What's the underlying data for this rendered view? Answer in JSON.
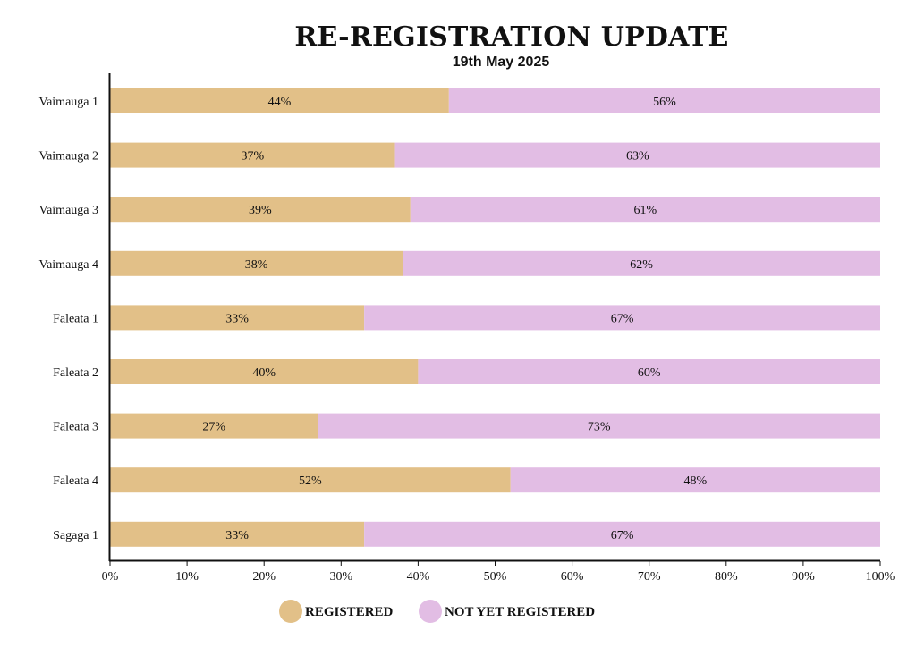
{
  "chart_data": {
    "type": "bar",
    "orientation": "horizontal",
    "stacked": true,
    "title": "RE-REGISTRATION UPDATE",
    "subtitle": "19th May 2025",
    "categories": [
      "Vaimauga 1",
      "Vaimauga 2",
      "Vaimauga 3",
      "Vaimauga 4",
      "Faleata 1",
      "Faleata 2",
      "Faleata 3",
      "Faleata 4",
      "Sagaga 1"
    ],
    "series": [
      {
        "name": "REGISTERED",
        "color": "#e2c088",
        "values": [
          44,
          37,
          39,
          38,
          33,
          40,
          27,
          52,
          33
        ]
      },
      {
        "name": "NOT YET REGISTERED",
        "color": "#e2bde4",
        "values": [
          56,
          63,
          61,
          62,
          67,
          60,
          73,
          48,
          67
        ]
      }
    ],
    "xlim": [
      0,
      100
    ],
    "xticks": [
      "0%",
      "10%",
      "20%",
      "30%",
      "40%",
      "50%",
      "60%",
      "70%",
      "80%",
      "90%",
      "100%"
    ],
    "value_suffix": "%",
    "grid": false,
    "legend_position": "bottom"
  }
}
